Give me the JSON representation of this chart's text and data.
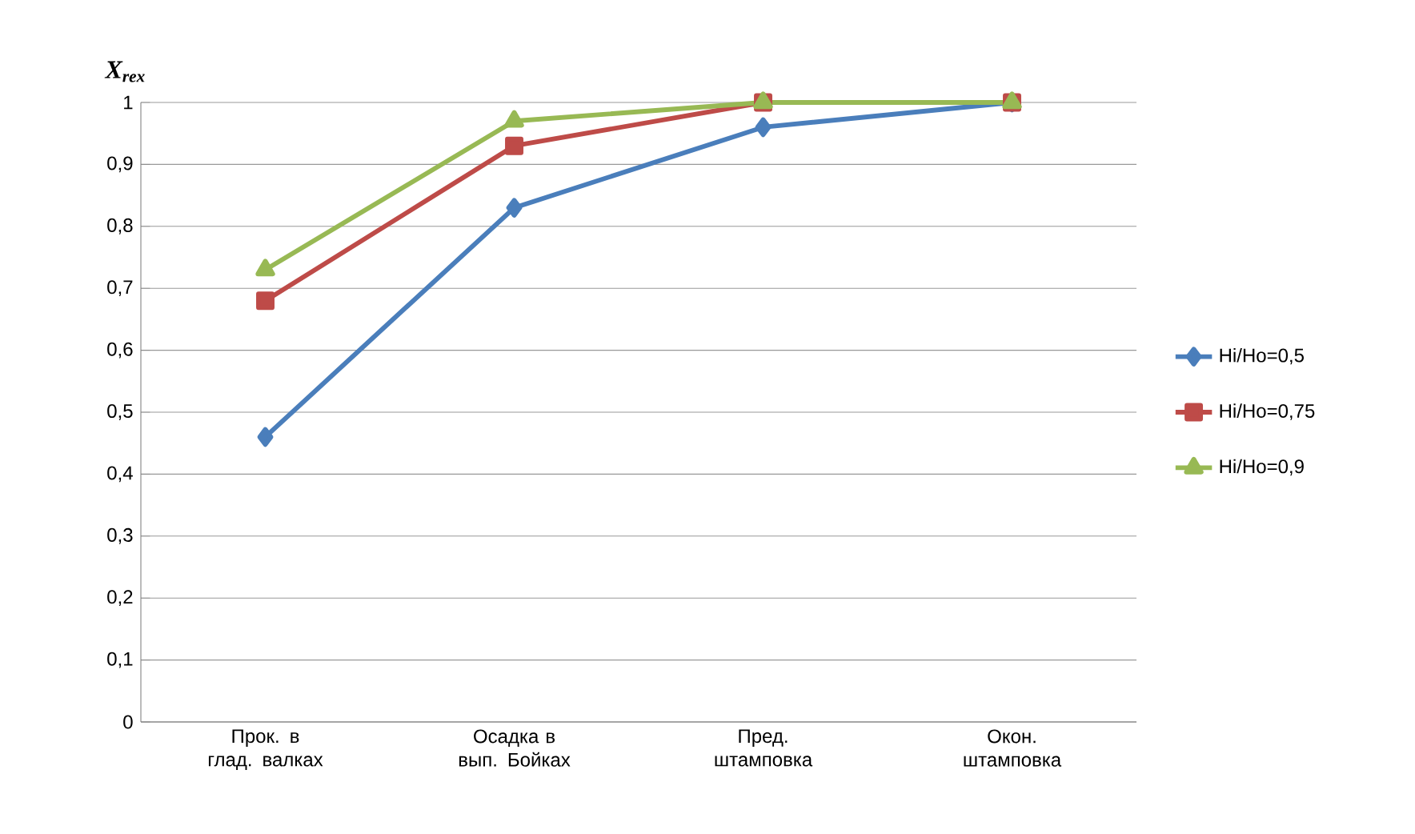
{
  "chart_data": {
    "type": "line",
    "ylabel": "X$_{rex}$",
    "categories": [
      "Прок. в глад. валках",
      "Осадка в вып. Бойках",
      "Пред. штамповка",
      "Окон. штамповка"
    ],
    "series": [
      {
        "name": "Hi/Ho=0,5",
        "color": "#4a7ebb",
        "marker": "diamond",
        "values": [
          0.46,
          0.83,
          0.96,
          1
        ]
      },
      {
        "name": "Hi/Ho=0,75",
        "color": "#be4b48",
        "marker": "square",
        "values": [
          0.68,
          0.93,
          1,
          1
        ]
      },
      {
        "name": "Hi/Ho=0,9",
        "color": "#98b954",
        "marker": "triangle",
        "values": [
          0.73,
          0.97,
          1,
          1
        ]
      }
    ],
    "ylim": [
      0,
      1
    ],
    "yticks": [
      0,
      {
        "value": 0.1,
        "label": "0,1"
      },
      {
        "value": 0.2,
        "label": "0,2"
      },
      {
        "value": 0.3,
        "label": "0,3"
      },
      {
        "value": 0.4,
        "label": "0,4"
      },
      {
        "value": 0.5,
        "label": "0,5"
      },
      {
        "value": 0.6,
        "label": "0,6"
      },
      {
        "value": 0.7,
        "label": "0,7"
      },
      {
        "value": 0.8,
        "label": "0,8"
      },
      {
        "value": 0.9,
        "label": "0,9"
      },
      1
    ],
    "grid": "y",
    "legend": "right",
    "line_style": "solid"
  }
}
